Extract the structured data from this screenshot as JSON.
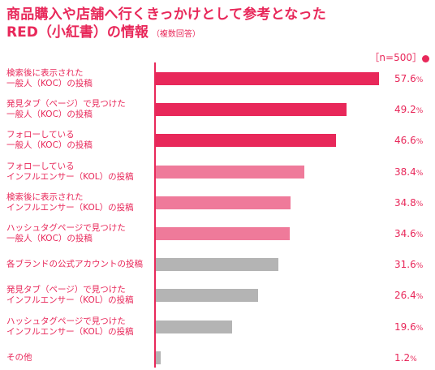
{
  "title_line1": "商品購入や店舗へ行くきっかけとして参考となった",
  "title_line2": "RED（小紅書）の情報",
  "title_note": "（複数回答）",
  "sample_size": "［n=500］",
  "colors": {
    "red": "#e8285a",
    "pink": "#ef7a9a",
    "gray": "#b4b4b4"
  },
  "chart_data": {
    "type": "bar",
    "orientation": "horizontal",
    "xlim": [
      0,
      60
    ],
    "unit": "%",
    "categories": [
      [
        "検索後に表示された",
        "一般人（KOC）の投稿"
      ],
      [
        "発見タブ（ページ）で見つけた",
        "一般人（KOC）の投稿"
      ],
      [
        "フォローしている",
        "一般人（KOC）の投稿"
      ],
      [
        "フォローしている",
        "インフルエンサー（KOL）の投稿"
      ],
      [
        "検索後に表示された",
        "インフルエンサー（KOL）の投稿"
      ],
      [
        "ハッシュタグページで見つけた",
        "一般人（KOC）の投稿"
      ],
      [
        "各ブランドの公式アカウントの投稿"
      ],
      [
        "発見タブ（ページ）で見つけた",
        "インフルエンサー（KOL）の投稿"
      ],
      [
        "ハッシュタグページで見つけた",
        "インフルエンサー（KOL）の投稿"
      ],
      [
        "その他"
      ]
    ],
    "values": [
      57.6,
      49.2,
      46.6,
      38.4,
      34.8,
      34.6,
      31.6,
      26.4,
      19.6,
      1.2
    ],
    "value_labels": [
      "57.6",
      "49.2",
      "46.6",
      "38.4",
      "34.8",
      "34.6",
      "31.6",
      "26.4",
      "19.6",
      "1.2"
    ],
    "bar_colors": [
      "red",
      "red",
      "red",
      "pink",
      "pink",
      "pink",
      "gray",
      "gray",
      "gray",
      "gray"
    ],
    "percent_sign": "%"
  }
}
